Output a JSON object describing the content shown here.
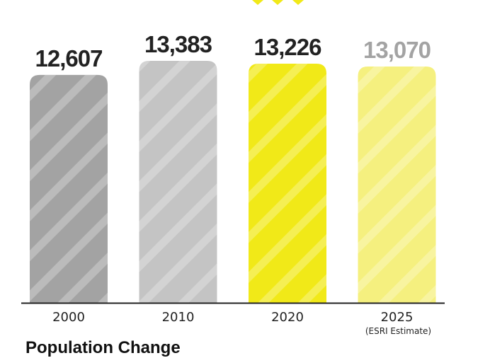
{
  "footer_title": "Population Change",
  "chart_data": {
    "type": "bar",
    "categories": [
      "2000",
      "2010",
      "2020",
      "2025"
    ],
    "category_notes": [
      "",
      "",
      "",
      "(ESRI Estimate)"
    ],
    "values": [
      12607,
      13383,
      13226,
      13070
    ],
    "value_labels": [
      "12,607",
      "13,383",
      "13,226",
      "13,070"
    ],
    "bar_colors": [
      "#a3a3a3",
      "#c4c4c4",
      "#f1e918",
      "#f5f07f"
    ],
    "label_colors": [
      "#222222",
      "#222222",
      "#222222",
      "#a3a3a3"
    ],
    "ylim": [
      0,
      13383
    ],
    "grid": false,
    "xlabel": "",
    "ylabel": ""
  }
}
